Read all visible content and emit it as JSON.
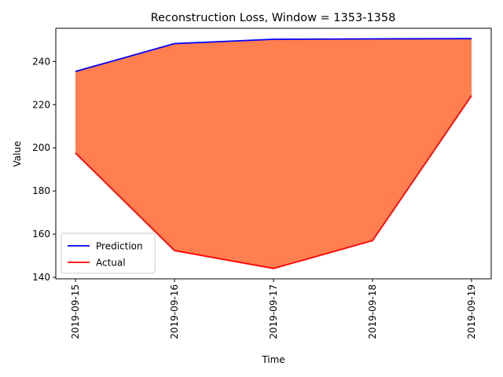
{
  "chart_data": {
    "type": "area",
    "title": "Reconstruction Loss, Window = 1353-1358",
    "xlabel": "Time",
    "ylabel": "Value",
    "x": [
      "2019-09-15",
      "2019-09-16",
      "2019-09-17",
      "2019-09-18",
      "2019-09-19"
    ],
    "series": [
      {
        "name": "Prediction",
        "color": "#0000ff",
        "values": [
          235.4,
          248.3,
          250.3,
          250.5,
          250.6
        ]
      },
      {
        "name": "Actual",
        "color": "#ff0000",
        "values": [
          197.6,
          152.4,
          144.1,
          157.0,
          224.2
        ]
      }
    ],
    "fill_between": {
      "color": "#ff7f50",
      "series": [
        "Prediction",
        "Actual"
      ]
    },
    "ylim": [
      139.3,
      255.4
    ],
    "yticks": [
      140,
      160,
      180,
      200,
      220,
      240
    ],
    "grid": false,
    "legend_position": "lower-left",
    "xtick_rotation": "vertical"
  }
}
